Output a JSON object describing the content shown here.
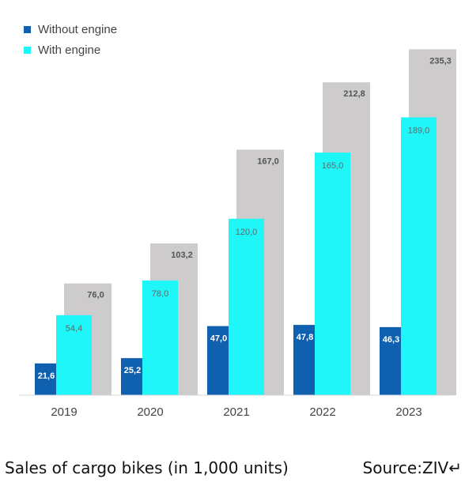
{
  "colors": {
    "without_engine": "#1060b0",
    "with_engine": "#1ef6f8",
    "total": "#cdcbcb"
  },
  "legend": {
    "without_engine": "Without engine",
    "with_engine": "With engine"
  },
  "caption": {
    "title": "Sales of cargo bikes (in 1,000 units)",
    "source": "Source:ZIV↵"
  },
  "chart_data": {
    "type": "bar",
    "categories": [
      "2019",
      "2020",
      "2021",
      "2022",
      "2023"
    ],
    "series": [
      {
        "name": "Without engine",
        "values": [
          21.6,
          25.2,
          47.0,
          47.8,
          46.3
        ],
        "labels": [
          "21,6",
          "25,2",
          "47,0",
          "47,8",
          "46,3"
        ]
      },
      {
        "name": "With engine",
        "values": [
          54.4,
          78.0,
          120.0,
          165.0,
          189.0
        ],
        "labels": [
          "54,4",
          "78,0",
          "120,0",
          "165,0",
          "189,0"
        ]
      },
      {
        "name": "",
        "values": [
          76.0,
          103.2,
          167.0,
          212.8,
          235.3
        ],
        "labels": [
          "76,0",
          "103,2",
          "167,0",
          "212,8",
          "235,3"
        ]
      }
    ],
    "ylim": [
      0,
      260
    ],
    "grid": false,
    "legend_position": "top-left"
  }
}
